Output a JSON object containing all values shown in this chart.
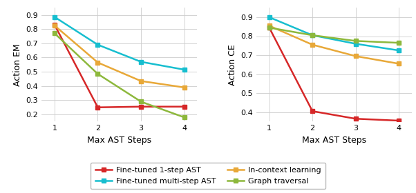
{
  "x": [
    1,
    2,
    3,
    4
  ],
  "em": {
    "fine_tuned_1step": [
      0.83,
      0.25,
      0.255,
      0.255
    ],
    "fine_tuned_multistep": [
      0.885,
      0.69,
      0.57,
      0.515
    ],
    "in_context": [
      0.825,
      0.565,
      0.435,
      0.39
    ],
    "graph_traversal": [
      0.77,
      0.485,
      0.29,
      0.18
    ]
  },
  "ce": {
    "fine_tuned_1step": [
      0.845,
      0.405,
      0.365,
      0.355
    ],
    "fine_tuned_multistep": [
      0.9,
      0.805,
      0.76,
      0.725
    ],
    "in_context": [
      0.855,
      0.755,
      0.695,
      0.655
    ],
    "graph_traversal": [
      0.845,
      0.805,
      0.775,
      0.765
    ]
  },
  "colors": {
    "fine_tuned_1step": "#d62728",
    "fine_tuned_multistep": "#17becf",
    "in_context": "#e8a838",
    "graph_traversal": "#8db83c"
  },
  "em_ylim": [
    0.15,
    0.95
  ],
  "ce_ylim": [
    0.35,
    0.95
  ],
  "em_yticks": [
    0.2,
    0.3,
    0.4,
    0.5,
    0.6,
    0.7,
    0.8,
    0.9
  ],
  "ce_yticks": [
    0.4,
    0.5,
    0.6,
    0.7,
    0.8,
    0.9
  ],
  "xlabel": "Max AST Steps",
  "em_ylabel": "Action EM",
  "ce_ylabel": "Action CE",
  "legend_entries": [
    "Fine-tuned 1-step AST",
    "Fine-tuned multi-step AST",
    "In-context learning",
    "Graph traversal"
  ],
  "marker": "s",
  "markersize": 4,
  "linewidth": 1.8,
  "tick_fontsize": 8,
  "label_fontsize": 9,
  "legend_fontsize": 8
}
